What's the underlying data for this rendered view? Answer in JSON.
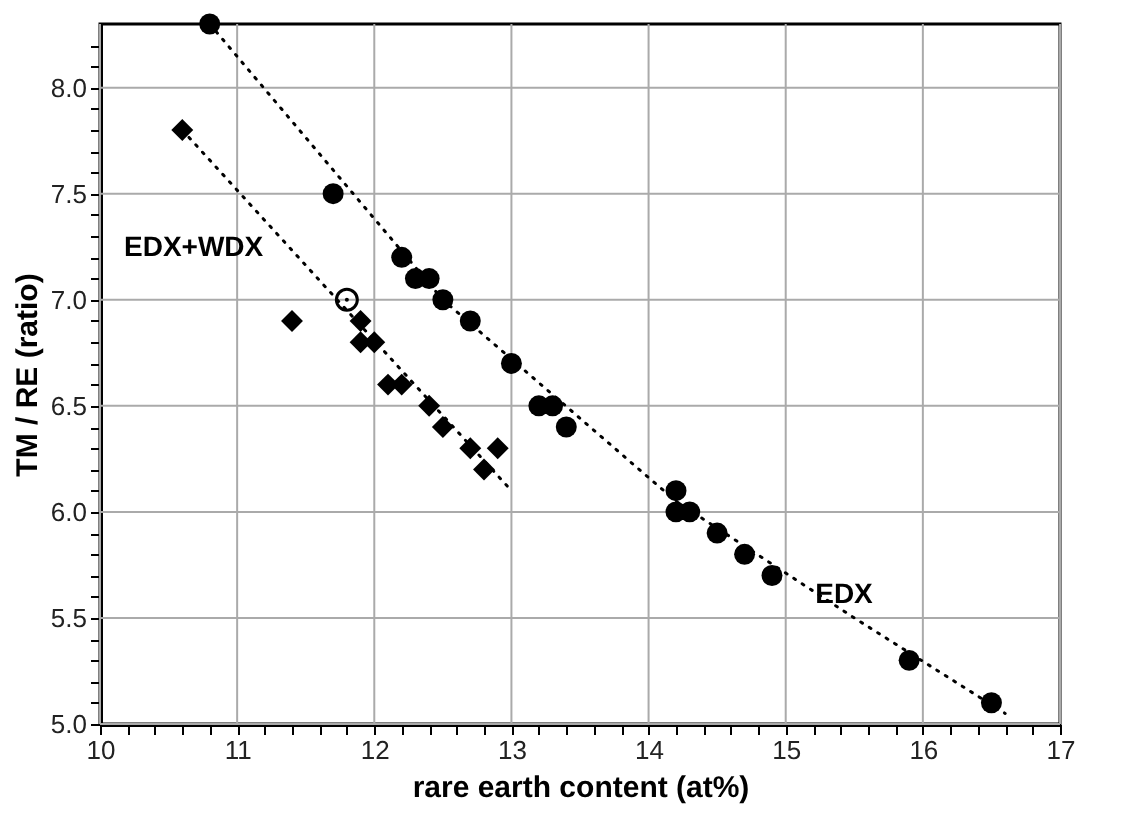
{
  "chart_data": {
    "type": "scatter",
    "xlabel": "rare earth content (at%)",
    "ylabel": "TM / RE (ratio)",
    "xlim": [
      10,
      17
    ],
    "ylim": [
      5.0,
      8.3
    ],
    "xticks": [
      10,
      {
        "value": 10.2,
        "label": null
      },
      {
        "value": 10.4,
        "label": null
      },
      {
        "value": 10.6,
        "label": null
      },
      {
        "value": 10.8,
        "label": null
      },
      11,
      {
        "value": 11.2,
        "label": null
      },
      {
        "value": 11.4,
        "label": null
      },
      {
        "value": 11.6,
        "label": null
      },
      {
        "value": 11.8,
        "label": null
      },
      12,
      {
        "value": 12.2,
        "label": null
      },
      {
        "value": 12.4,
        "label": null
      },
      {
        "value": 12.6,
        "label": null
      },
      {
        "value": 12.8,
        "label": null
      },
      13,
      {
        "value": 13.2,
        "label": null
      },
      {
        "value": 13.4,
        "label": null
      },
      {
        "value": 13.6,
        "label": null
      },
      {
        "value": 13.8,
        "label": null
      },
      14,
      {
        "value": 14.2,
        "label": null
      },
      {
        "value": 14.4,
        "label": null
      },
      {
        "value": 14.6,
        "label": null
      },
      {
        "value": 14.8,
        "label": null
      },
      15,
      {
        "value": 15.2,
        "label": null
      },
      {
        "value": 15.4,
        "label": null
      },
      {
        "value": 15.6,
        "label": null
      },
      {
        "value": 15.8,
        "label": null
      },
      16,
      {
        "value": 16.2,
        "label": null
      },
      {
        "value": 16.4,
        "label": null
      },
      {
        "value": 16.6,
        "label": null
      },
      {
        "value": 16.8,
        "label": null
      },
      17
    ],
    "yticks": [
      {
        "value": 5.0,
        "label": "5.0"
      },
      {
        "value": 5.1,
        "label": null
      },
      {
        "value": 5.2,
        "label": null
      },
      {
        "value": 5.3,
        "label": null
      },
      {
        "value": 5.4,
        "label": null
      },
      {
        "value": 5.5,
        "label": "5.5"
      },
      {
        "value": 5.6,
        "label": null
      },
      {
        "value": 5.7,
        "label": null
      },
      {
        "value": 5.8,
        "label": null
      },
      {
        "value": 5.9,
        "label": null
      },
      {
        "value": 6.0,
        "label": "6.0"
      },
      {
        "value": 6.1,
        "label": null
      },
      {
        "value": 6.2,
        "label": null
      },
      {
        "value": 6.3,
        "label": null
      },
      {
        "value": 6.4,
        "label": null
      },
      {
        "value": 6.5,
        "label": "6.5"
      },
      {
        "value": 6.6,
        "label": null
      },
      {
        "value": 6.7,
        "label": null
      },
      {
        "value": 6.8,
        "label": null
      },
      {
        "value": 6.9,
        "label": null
      },
      {
        "value": 7.0,
        "label": "7.0"
      },
      {
        "value": 7.1,
        "label": null
      },
      {
        "value": 7.2,
        "label": null
      },
      {
        "value": 7.3,
        "label": null
      },
      {
        "value": 7.4,
        "label": null
      },
      {
        "value": 7.5,
        "label": "7.5"
      },
      {
        "value": 7.6,
        "label": null
      },
      {
        "value": 7.7,
        "label": null
      },
      {
        "value": 7.8,
        "label": null
      },
      {
        "value": 7.9,
        "label": null
      },
      {
        "value": 8.0,
        "label": "8.0"
      },
      {
        "value": 8.1,
        "label": null
      },
      {
        "value": 8.2,
        "label": null
      }
    ],
    "grid": true,
    "annotations": [
      "EDX+WDX",
      "EDX"
    ],
    "series": [
      {
        "type": "line",
        "line_style": "dotted",
        "marker": "none",
        "color": "#000000",
        "x": [
          10.8,
          12.5,
          14.2,
          15.5,
          16.6
        ],
        "values": [
          8.3,
          7.0,
          6.05,
          5.5,
          5.05
        ]
      },
      {
        "type": "line",
        "line_style": "dotted",
        "marker": "none",
        "color": "#000000",
        "x": [
          10.6,
          11.8,
          13.0
        ],
        "values": [
          7.8,
          6.95,
          6.1
        ]
      },
      {
        "marker": "circle",
        "color": "#000000",
        "x": [
          10.8,
          11.7,
          12.2,
          12.3,
          12.4,
          12.5,
          12.7,
          13.0,
          13.2,
          13.3,
          13.4,
          14.2,
          14.2,
          14.3,
          14.5,
          14.7,
          14.9,
          15.9,
          16.5
        ],
        "values": [
          8.3,
          7.5,
          7.2,
          7.1,
          7.1,
          7.0,
          6.9,
          6.7,
          6.5,
          6.5,
          6.4,
          6.1,
          6.0,
          6.0,
          5.9,
          5.8,
          5.7,
          5.3,
          5.1
        ]
      },
      {
        "marker": "diamond",
        "color": "#000000",
        "x": [
          10.6,
          11.4,
          11.9,
          11.9,
          12.0,
          12.1,
          12.2,
          12.4,
          12.5,
          12.7,
          12.9,
          12.8
        ],
        "values": [
          7.8,
          6.9,
          6.9,
          6.8,
          6.8,
          6.6,
          6.6,
          6.5,
          6.4,
          6.3,
          6.3,
          6.2
        ]
      },
      {
        "marker": "circle",
        "color": "#000000",
        "x": [
          11.8
        ],
        "values": [
          7.0
        ]
      }
    ]
  }
}
